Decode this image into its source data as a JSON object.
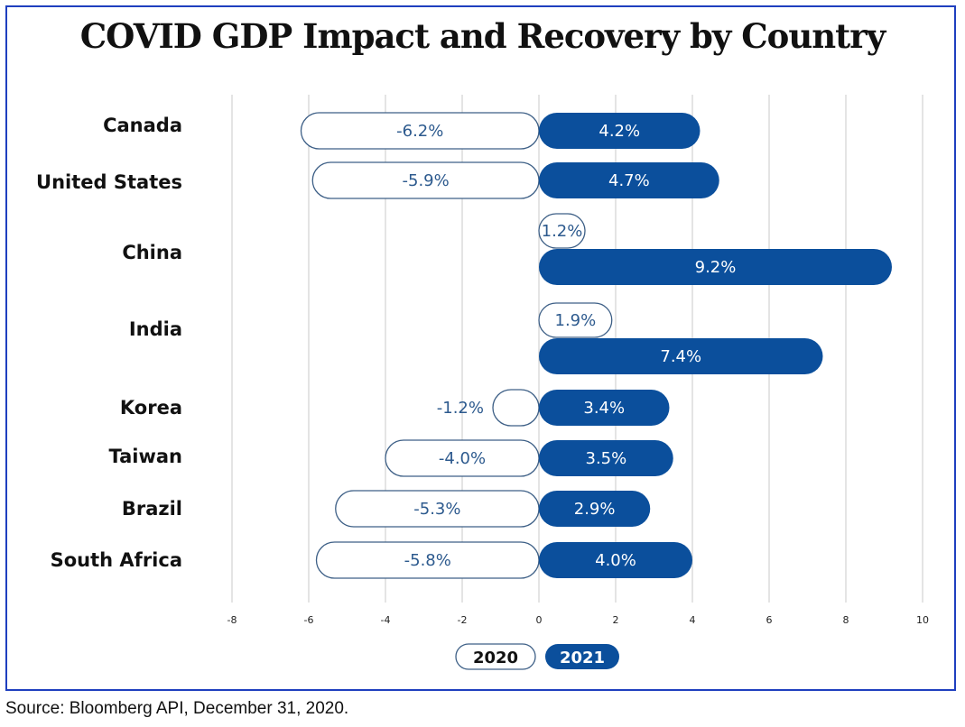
{
  "chart_data": {
    "type": "bar",
    "title": "COVID GDP Impact and Recovery by Country",
    "categories": [
      "Canada",
      "United States",
      "China",
      "India",
      "Korea",
      "Taiwan",
      "Brazil",
      "South Africa"
    ],
    "series": [
      {
        "name": "2020",
        "values": [
          -6.2,
          -5.9,
          1.2,
          1.9,
          -1.2,
          -4.0,
          -5.3,
          -5.8
        ],
        "labels": [
          "-6.2%",
          "-5.9%",
          "1.2%",
          "1.9%",
          "-1.2%",
          "-4.0%",
          "-5.3%",
          "-5.8%"
        ],
        "style": "outline"
      },
      {
        "name": "2021",
        "values": [
          4.2,
          4.7,
          9.2,
          7.4,
          3.4,
          3.5,
          2.9,
          4.0
        ],
        "labels": [
          "4.2%",
          "4.7%",
          "9.2%",
          "7.4%",
          "3.4%",
          "3.5%",
          "2.9%",
          "4.0%"
        ],
        "style": "filled"
      }
    ],
    "xlim": [
      -8,
      10
    ],
    "xticks": [
      "-8",
      "-6",
      "-4",
      "-2",
      "0",
      "2",
      "4",
      "6",
      "8",
      "10"
    ],
    "grid": "vertical",
    "legend_position": "bottom-center",
    "xlabel": "",
    "ylabel": ""
  },
  "colors": {
    "fill": "#0b4f9c",
    "outline": "#3d5f86",
    "text_blue": "#2d5a8e",
    "grid": "#c8c8c8",
    "frame": "#1f3fbf"
  },
  "source": "Source: Bloomberg API, December 31, 2020."
}
